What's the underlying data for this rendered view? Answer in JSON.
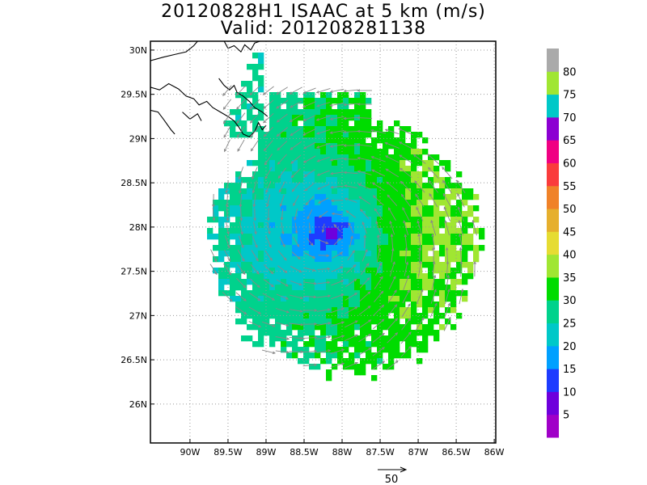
{
  "header": {
    "title": "20120828H1 ISAAC at 5 km (m/s)",
    "subtitle": "Valid: 201208281138"
  },
  "axes": {
    "lon_labels": [
      "90W",
      "89.5W",
      "89W",
      "88.5W",
      "88W",
      "87.5W",
      "87W",
      "86.5W",
      "86W"
    ],
    "lon_values": [
      -90,
      -89.5,
      -89,
      -88.5,
      -88,
      -87.5,
      -87,
      -86.5,
      -86
    ],
    "lat_labels": [
      "30N",
      "29.5N",
      "29N",
      "28.5N",
      "28N",
      "27.5N",
      "27N",
      "26.5N",
      "26N"
    ],
    "lat_values": [
      30,
      29.5,
      29,
      28.5,
      28,
      27.5,
      27,
      26.5,
      26
    ],
    "lon_range": [
      -90.52,
      -85.98
    ],
    "lat_range": [
      25.56,
      30.1
    ]
  },
  "storm": {
    "center_lon": -88.15,
    "center_lat": 27.95
  },
  "colorbar": {
    "labels": [
      "5",
      "10",
      "15",
      "20",
      "25",
      "30",
      "35",
      "40",
      "45",
      "50",
      "55",
      "60",
      "65",
      "70",
      "75",
      "80"
    ],
    "colors": [
      "#a000c8",
      "#6e00dc",
      "#1e3cff",
      "#00a0ff",
      "#00c8c8",
      "#00d28c",
      "#00dc00",
      "#a0e632",
      "#e6dc32",
      "#e6af2d",
      "#f08228",
      "#fa3c3c",
      "#f00082",
      "#8c00d2",
      "#00c8c8",
      "#a0e632",
      "#aaaaaa"
    ]
  },
  "vector_key": {
    "label": "50"
  },
  "colors": {
    "coastline": "#000000",
    "arrow": "#888888",
    "grid": "#999999"
  }
}
